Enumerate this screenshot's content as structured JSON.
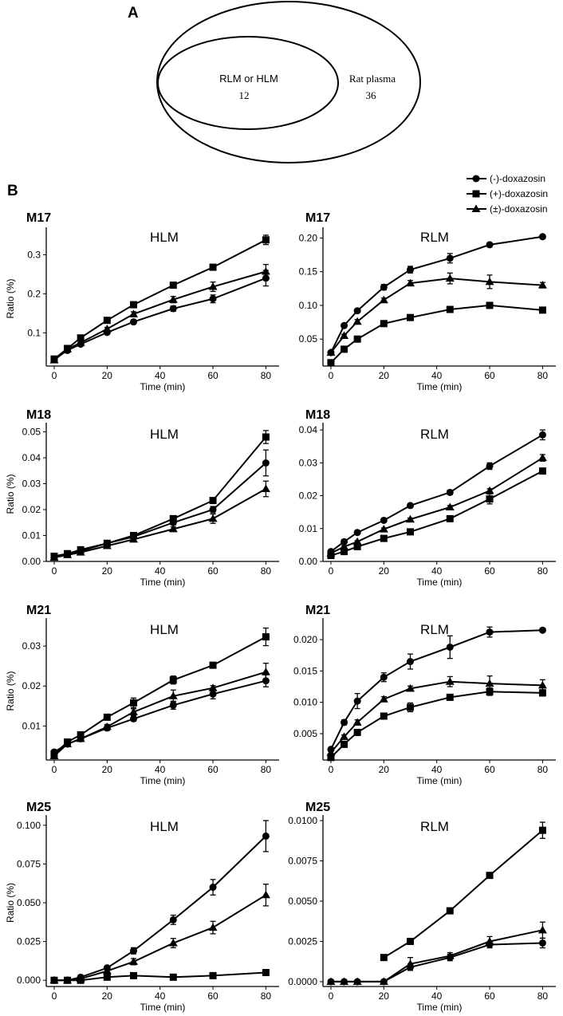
{
  "panel_a": {
    "letter": "A",
    "inner_label": "RLM or HLM",
    "inner_count": "12",
    "outer_label": "Rat plasma",
    "outer_count": "36"
  },
  "panel_b": {
    "letter": "B"
  },
  "legend": [
    {
      "marker": "circle",
      "label": "(-)-doxazosin"
    },
    {
      "marker": "square",
      "label": "(+)-doxazosin"
    },
    {
      "marker": "triangle",
      "label": "(±)-doxazosin"
    }
  ],
  "chart_data": [
    {
      "type": "line",
      "panel": "M17",
      "title": "HLM",
      "xlabel": "Time (min)",
      "ylabel": "Ratio (%)",
      "xlim": [
        -3,
        85
      ],
      "ylim": [
        0.015,
        0.36
      ],
      "yticks": [
        0.1,
        0.2,
        0.3
      ],
      "ytick_labels": [
        "0.1",
        "0.2",
        "0.3"
      ],
      "xticks": [
        0,
        20,
        40,
        60,
        80
      ],
      "xtick_labels": [
        "0",
        "20",
        "40",
        "60",
        "80"
      ],
      "x": [
        0,
        5,
        10,
        20,
        30,
        45,
        60,
        80
      ],
      "series": [
        {
          "name": "(-)-doxazosin",
          "marker": "circle",
          "values": [
            0.032,
            0.055,
            0.071,
            0.101,
            0.128,
            0.162,
            0.187,
            0.24
          ],
          "errors": [
            0.003,
            0.003,
            0.003,
            0.004,
            0.005,
            0.007,
            0.01,
            0.02
          ]
        },
        {
          "name": "(+)-doxazosin",
          "marker": "square",
          "values": [
            0.033,
            0.06,
            0.087,
            0.132,
            0.172,
            0.222,
            0.268,
            0.338
          ],
          "errors": [
            0.003,
            0.003,
            0.003,
            0.004,
            0.004,
            0.004,
            0.005,
            0.012
          ]
        },
        {
          "name": "(±)-doxazosin",
          "marker": "triangle",
          "values": [
            0.03,
            0.058,
            0.075,
            0.11,
            0.148,
            0.185,
            0.218,
            0.257
          ],
          "errors": [
            0.003,
            0.003,
            0.003,
            0.004,
            0.006,
            0.008,
            0.012,
            0.018
          ]
        }
      ]
    },
    {
      "type": "line",
      "panel": "M17",
      "title": "RLM",
      "xlabel": "Time (min)",
      "ylabel": "",
      "xlim": [
        -3,
        85
      ],
      "ylim": [
        0.01,
        0.21
      ],
      "yticks": [
        0.05,
        0.1,
        0.15,
        0.2
      ],
      "ytick_labels": [
        "0.05",
        "0.10",
        "0.15",
        "0.20"
      ],
      "xticks": [
        0,
        20,
        40,
        60,
        80
      ],
      "xtick_labels": [
        "0",
        "20",
        "40",
        "60",
        "80"
      ],
      "x": [
        0,
        5,
        10,
        20,
        30,
        45,
        60,
        80
      ],
      "series": [
        {
          "name": "(-)-doxazosin",
          "marker": "circle",
          "values": [
            0.03,
            0.07,
            0.092,
            0.127,
            0.153,
            0.17,
            0.19,
            0.202
          ],
          "errors": [
            0.002,
            0.002,
            0.003,
            0.004,
            0.005,
            0.007,
            0.003,
            0.002
          ]
        },
        {
          "name": "(+)-doxazosin",
          "marker": "square",
          "values": [
            0.015,
            0.035,
            0.05,
            0.073,
            0.082,
            0.094,
            0.1,
            0.093
          ],
          "errors": [
            0.001,
            0.002,
            0.002,
            0.002,
            0.002,
            0.004,
            0.002,
            0.002
          ]
        },
        {
          "name": "(±)-doxazosin",
          "marker": "triangle",
          "values": [
            0.03,
            0.055,
            0.076,
            0.108,
            0.133,
            0.14,
            0.135,
            0.13
          ],
          "errors": [
            0.002,
            0.002,
            0.003,
            0.003,
            0.004,
            0.008,
            0.01,
            0.004
          ]
        }
      ]
    },
    {
      "type": "line",
      "panel": "M18",
      "title": "HLM",
      "xlabel": "Time (min)",
      "ylabel": "Ratio (%)",
      "xlim": [
        -3,
        85
      ],
      "ylim": [
        0,
        0.052
      ],
      "yticks": [
        0,
        0.01,
        0.02,
        0.03,
        0.04,
        0.05
      ],
      "ytick_labels": [
        "0.00",
        "0.01",
        "0.02",
        "0.03",
        "0.04",
        "0.05"
      ],
      "xticks": [
        0,
        20,
        40,
        60,
        80
      ],
      "xtick_labels": [
        "0",
        "20",
        "40",
        "60",
        "80"
      ],
      "x": [
        0,
        5,
        10,
        20,
        30,
        45,
        60,
        80
      ],
      "series": [
        {
          "name": "(-)-doxazosin",
          "marker": "circle",
          "values": [
            0.002,
            0.003,
            0.004,
            0.007,
            0.0095,
            0.015,
            0.02,
            0.038
          ],
          "errors": [
            0.0004,
            0.0004,
            0.0004,
            0.0005,
            0.0006,
            0.001,
            0.0012,
            0.005
          ]
        },
        {
          "name": "(+)-doxazosin",
          "marker": "square",
          "values": [
            0.002,
            0.003,
            0.0045,
            0.007,
            0.01,
            0.0165,
            0.0235,
            0.048
          ],
          "errors": [
            0.0004,
            0.0004,
            0.0004,
            0.0005,
            0.0005,
            0.0006,
            0.0006,
            0.0025
          ]
        },
        {
          "name": "(±)-doxazosin",
          "marker": "triangle",
          "values": [
            0.0015,
            0.0025,
            0.0035,
            0.006,
            0.0085,
            0.0125,
            0.0165,
            0.028
          ],
          "errors": [
            0.0004,
            0.0004,
            0.0004,
            0.0005,
            0.0006,
            0.0008,
            0.0018,
            0.003
          ]
        }
      ]
    },
    {
      "type": "line",
      "panel": "M18",
      "title": "RLM",
      "xlabel": "Time (min)",
      "ylabel": "",
      "xlim": [
        -3,
        85
      ],
      "ylim": [
        0,
        0.041
      ],
      "yticks": [
        0,
        0.01,
        0.02,
        0.03,
        0.04
      ],
      "ytick_labels": [
        "0.00",
        "0.01",
        "0.02",
        "0.03",
        "0.04"
      ],
      "xticks": [
        0,
        20,
        40,
        60,
        80
      ],
      "xtick_labels": [
        "0",
        "20",
        "40",
        "60",
        "80"
      ],
      "x": [
        0,
        5,
        10,
        20,
        30,
        45,
        60,
        80
      ],
      "series": [
        {
          "name": "(-)-doxazosin",
          "marker": "circle",
          "values": [
            0.003,
            0.006,
            0.0088,
            0.0125,
            0.017,
            0.021,
            0.029,
            0.0385
          ],
          "errors": [
            0.0003,
            0.0003,
            0.0004,
            0.0004,
            0.0006,
            0.0007,
            0.001,
            0.0015
          ]
        },
        {
          "name": "(+)-doxazosin",
          "marker": "square",
          "values": [
            0.0018,
            0.003,
            0.0045,
            0.007,
            0.009,
            0.013,
            0.019,
            0.0275
          ],
          "errors": [
            0.0003,
            0.0003,
            0.0003,
            0.0004,
            0.0004,
            0.0005,
            0.0015,
            0.0005
          ]
        },
        {
          "name": "(±)-doxazosin",
          "marker": "triangle",
          "values": [
            0.0025,
            0.0045,
            0.006,
            0.0098,
            0.0128,
            0.0165,
            0.0215,
            0.0315
          ],
          "errors": [
            0.0003,
            0.0003,
            0.0003,
            0.0004,
            0.0004,
            0.0005,
            0.0006,
            0.001
          ]
        }
      ]
    },
    {
      "type": "line",
      "panel": "M21",
      "title": "HLM",
      "xlabel": "Time (min)",
      "ylabel": "Ratio (%)",
      "xlim": [
        -3,
        85
      ],
      "ylim": [
        0.0015,
        0.036
      ],
      "yticks": [
        0.01,
        0.02,
        0.03
      ],
      "ytick_labels": [
        "0.01",
        "0.02",
        "0.03"
      ],
      "xticks": [
        0,
        20,
        40,
        60,
        80
      ],
      "xtick_labels": [
        "0",
        "20",
        "40",
        "60",
        "80"
      ],
      "x": [
        0,
        5,
        10,
        20,
        30,
        45,
        60,
        80
      ],
      "series": [
        {
          "name": "(-)-doxazosin",
          "marker": "circle",
          "values": [
            0.0035,
            0.0055,
            0.0068,
            0.0095,
            0.0118,
            0.0152,
            0.018,
            0.0213
          ],
          "errors": [
            0.0005,
            0.0005,
            0.0005,
            0.0006,
            0.0006,
            0.001,
            0.0012,
            0.0015
          ]
        },
        {
          "name": "(+)-doxazosin",
          "marker": "square",
          "values": [
            0.003,
            0.006,
            0.0078,
            0.0122,
            0.0158,
            0.0215,
            0.0252,
            0.0323
          ],
          "errors": [
            0.0005,
            0.0006,
            0.0006,
            0.0006,
            0.0012,
            0.001,
            0.0006,
            0.0022
          ]
        },
        {
          "name": "(±)-doxazosin",
          "marker": "triangle",
          "values": [
            0.0025,
            0.0055,
            0.0068,
            0.0098,
            0.0135,
            0.0175,
            0.0195,
            0.0235
          ],
          "errors": [
            0.0005,
            0.0005,
            0.0005,
            0.0006,
            0.0008,
            0.0015,
            0.0006,
            0.0022
          ]
        }
      ]
    },
    {
      "type": "line",
      "panel": "M21",
      "title": "RLM",
      "xlabel": "Time (min)",
      "ylabel": "",
      "xlim": [
        -3,
        85
      ],
      "ylim": [
        0.0008,
        0.0228
      ],
      "yticks": [
        0.005,
        0.01,
        0.015,
        0.02
      ],
      "ytick_labels": [
        "0.005",
        "0.010",
        "0.015",
        "0.020"
      ],
      "xticks": [
        0,
        20,
        40,
        60,
        80
      ],
      "xtick_labels": [
        "0",
        "20",
        "40",
        "60",
        "80"
      ],
      "x": [
        0,
        5,
        10,
        20,
        30,
        45,
        60,
        80
      ],
      "series": [
        {
          "name": "(-)-doxazosin",
          "marker": "circle",
          "values": [
            0.0025,
            0.0068,
            0.0102,
            0.014,
            0.0165,
            0.0188,
            0.0212,
            0.0215
          ],
          "errors": [
            0.0003,
            0.0004,
            0.0012,
            0.0007,
            0.0012,
            0.0018,
            0.0008,
            0.0003
          ]
        },
        {
          "name": "(+)-doxazosin",
          "marker": "square",
          "values": [
            0.0012,
            0.0033,
            0.0052,
            0.0078,
            0.0092,
            0.0108,
            0.0117,
            0.0115
          ],
          "errors": [
            0.0002,
            0.0003,
            0.0003,
            0.0004,
            0.0007,
            0.0004,
            0.0006,
            0.0005
          ]
        },
        {
          "name": "(±)-doxazosin",
          "marker": "triangle",
          "values": [
            0.002,
            0.0045,
            0.0068,
            0.0105,
            0.0122,
            0.0133,
            0.013,
            0.0127
          ],
          "errors": [
            0.0003,
            0.0003,
            0.0004,
            0.0004,
            0.0004,
            0.0008,
            0.0012,
            0.0009
          ]
        }
      ]
    },
    {
      "type": "line",
      "panel": "M25",
      "title": "HLM",
      "xlabel": "Time (min)",
      "ylabel": "Ratio (%)",
      "xlim": [
        -3,
        85
      ],
      "ylim": [
        -0.004,
        0.104
      ],
      "yticks": [
        0,
        0.025,
        0.05,
        0.075,
        0.1
      ],
      "ytick_labels": [
        "0.000",
        "0.025",
        "0.050",
        "0.075",
        "0.100"
      ],
      "xticks": [
        0,
        20,
        40,
        60,
        80
      ],
      "xtick_labels": [
        "0",
        "20",
        "40",
        "60",
        "80"
      ],
      "x": [
        0,
        5,
        10,
        20,
        30,
        45,
        60,
        80
      ],
      "series": [
        {
          "name": "(-)-doxazosin",
          "marker": "circle",
          "values": [
            0.0,
            0.0,
            0.002,
            0.008,
            0.019,
            0.039,
            0.06,
            0.093
          ],
          "errors": [
            0.0005,
            0.0005,
            0.0005,
            0.001,
            0.002,
            0.003,
            0.005,
            0.01
          ]
        },
        {
          "name": "(+)-doxazosin",
          "marker": "square",
          "values": [
            0.0,
            0.0,
            0.0,
            0.002,
            0.003,
            0.002,
            0.003,
            0.005
          ],
          "errors": [
            0.0004,
            0.0004,
            0.0004,
            0.0004,
            0.0005,
            0.0004,
            0.0005,
            0.0005
          ]
        },
        {
          "name": "(±)-doxazosin",
          "marker": "triangle",
          "values": [
            0.0,
            0.0,
            0.001,
            0.006,
            0.012,
            0.024,
            0.034,
            0.055
          ],
          "errors": [
            0.0005,
            0.0005,
            0.0005,
            0.001,
            0.002,
            0.003,
            0.004,
            0.007
          ]
        }
      ]
    },
    {
      "type": "line",
      "panel": "M25",
      "title": "RLM",
      "xlabel": "Time (min)",
      "ylabel": "",
      "xlim": [
        -3,
        85
      ],
      "ylim": [
        -0.0003,
        0.0101
      ],
      "yticks": [
        0,
        0.0025,
        0.005,
        0.0075,
        0.01
      ],
      "ytick_labels": [
        "0.0000",
        "0.0025",
        "0.0050",
        "0.0075",
        "0.0100"
      ],
      "xticks": [
        0,
        20,
        40,
        60,
        80
      ],
      "xtick_labels": [
        "0",
        "20",
        "40",
        "60",
        "80"
      ],
      "series": [
        {
          "name": "(-)-doxazosin",
          "marker": "circle",
          "x": [
            0,
            5,
            10,
            20,
            30,
            45,
            60,
            80
          ],
          "values": [
            0.0,
            0.0,
            0.0,
            0.0,
            0.0009,
            0.0015,
            0.0023,
            0.0024
          ],
          "errors": [
            5e-05,
            5e-05,
            5e-05,
            5e-05,
            0.0002,
            0.0002,
            0.0002,
            0.0003
          ]
        },
        {
          "name": "(+)-doxazosin",
          "marker": "square",
          "x": [
            20,
            30,
            45,
            60,
            80
          ],
          "values": [
            0.0015,
            0.0025,
            0.0044,
            0.0066,
            0.0094
          ],
          "errors": [
            0.0001,
            0.0001,
            0.0001,
            0.0001,
            0.0005
          ]
        },
        {
          "name": "(±)-doxazosin",
          "marker": "triangle",
          "x": [
            0,
            5,
            10,
            20,
            30,
            45,
            60,
            80
          ],
          "values": [
            0.0,
            0.0,
            0.0,
            0.0,
            0.0011,
            0.0016,
            0.0025,
            0.0032
          ],
          "errors": [
            5e-05,
            5e-05,
            5e-05,
            5e-05,
            0.0004,
            0.0002,
            0.0003,
            0.0005
          ]
        }
      ]
    }
  ]
}
